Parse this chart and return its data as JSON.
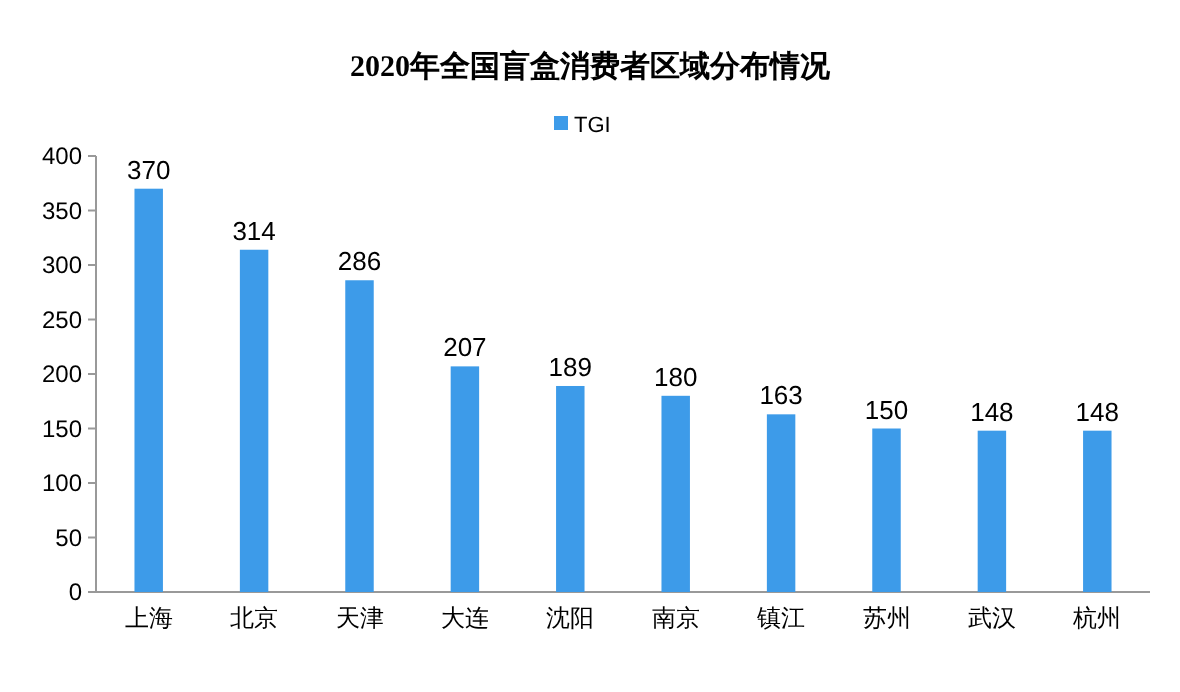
{
  "chart_data": {
    "type": "bar",
    "title": "2020年全国盲盒消费者区域分布情况",
    "categories": [
      "上海",
      "北京",
      "天津",
      "大连",
      "沈阳",
      "南京",
      "镇江",
      "苏州",
      "武汉",
      "杭州"
    ],
    "series": [
      {
        "name": "TGI",
        "color": "#3d9be9",
        "values": [
          370,
          314,
          286,
          207,
          189,
          180,
          163,
          150,
          148,
          148
        ]
      }
    ],
    "ylim": [
      0,
      400
    ],
    "yticks": [
      0,
      50,
      100,
      150,
      200,
      250,
      300,
      350,
      400
    ],
    "data_labels": true,
    "legend": "top"
  }
}
